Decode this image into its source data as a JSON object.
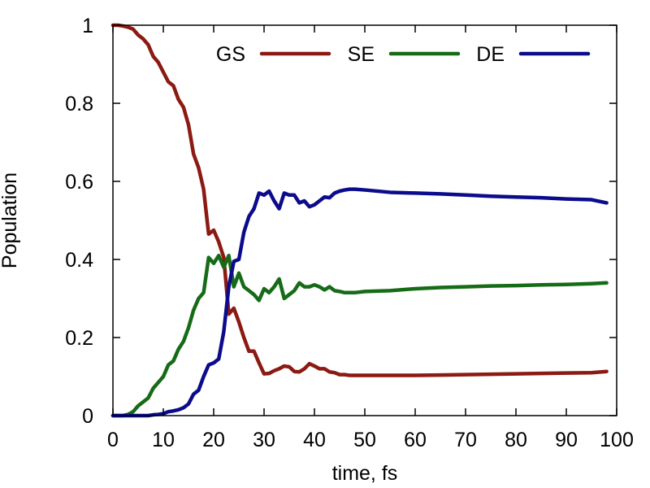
{
  "chart_data": {
    "type": "line",
    "xlabel": "time, fs",
    "ylabel": "Population",
    "xlim": [
      0,
      100
    ],
    "ylim": [
      0,
      1
    ],
    "xticks": [
      0,
      10,
      20,
      30,
      40,
      50,
      60,
      70,
      80,
      90,
      100
    ],
    "yticks": [
      0,
      0.2,
      0.4,
      0.6,
      0.8,
      1
    ],
    "ytick_labels": [
      "0",
      "0.2",
      "0.4",
      "0.6",
      "0.8",
      "1"
    ],
    "grid": false,
    "legend": "top",
    "series": [
      {
        "name": "GS",
        "color": "#8b1a12",
        "x": [
          0,
          1,
          2,
          3,
          4,
          5,
          6,
          7,
          8,
          9,
          10,
          11,
          12,
          13,
          14,
          15,
          16,
          17,
          18,
          19,
          20,
          21,
          22,
          23,
          24,
          25,
          26,
          27,
          28,
          29,
          30,
          31,
          32,
          33,
          34,
          35,
          36,
          37,
          38,
          39,
          40,
          41,
          42,
          43,
          44,
          45,
          46,
          47,
          48,
          50,
          55,
          60,
          65,
          70,
          75,
          80,
          85,
          90,
          95,
          98
        ],
        "y": [
          1.0,
          1.0,
          0.998,
          0.995,
          0.99,
          0.975,
          0.965,
          0.95,
          0.92,
          0.905,
          0.88,
          0.855,
          0.845,
          0.81,
          0.79,
          0.745,
          0.67,
          0.635,
          0.58,
          0.465,
          0.475,
          0.445,
          0.405,
          0.26,
          0.275,
          0.24,
          0.2,
          0.165,
          0.165,
          0.135,
          0.107,
          0.108,
          0.115,
          0.12,
          0.127,
          0.125,
          0.113,
          0.112,
          0.12,
          0.133,
          0.127,
          0.12,
          0.12,
          0.112,
          0.11,
          0.105,
          0.105,
          0.103,
          0.103,
          0.103,
          0.103,
          0.103,
          0.104,
          0.105,
          0.106,
          0.107,
          0.108,
          0.109,
          0.11,
          0.113
        ]
      },
      {
        "name": "SE",
        "color": "#166b16",
        "x": [
          0,
          1,
          2,
          3,
          4,
          5,
          6,
          7,
          8,
          9,
          10,
          11,
          12,
          13,
          14,
          15,
          16,
          17,
          18,
          19,
          20,
          21,
          22,
          23,
          24,
          25,
          26,
          27,
          28,
          29,
          30,
          31,
          32,
          33,
          34,
          35,
          36,
          37,
          38,
          39,
          40,
          41,
          42,
          43,
          44,
          45,
          46,
          47,
          48,
          50,
          55,
          60,
          65,
          70,
          75,
          80,
          85,
          90,
          95,
          98
        ],
        "y": [
          0.0,
          0.0,
          0.0,
          0.003,
          0.01,
          0.025,
          0.035,
          0.045,
          0.07,
          0.085,
          0.1,
          0.13,
          0.14,
          0.17,
          0.19,
          0.225,
          0.27,
          0.3,
          0.315,
          0.405,
          0.39,
          0.41,
          0.38,
          0.41,
          0.33,
          0.365,
          0.33,
          0.32,
          0.31,
          0.295,
          0.325,
          0.315,
          0.33,
          0.35,
          0.3,
          0.31,
          0.32,
          0.34,
          0.33,
          0.33,
          0.335,
          0.33,
          0.322,
          0.33,
          0.32,
          0.318,
          0.315,
          0.315,
          0.315,
          0.318,
          0.32,
          0.325,
          0.328,
          0.33,
          0.332,
          0.333,
          0.335,
          0.336,
          0.338,
          0.34
        ]
      },
      {
        "name": "DE",
        "color": "#0b0b8c",
        "x": [
          0,
          1,
          2,
          3,
          4,
          5,
          6,
          7,
          8,
          9,
          10,
          11,
          12,
          13,
          14,
          15,
          16,
          17,
          18,
          19,
          20,
          21,
          22,
          23,
          24,
          25,
          26,
          27,
          28,
          29,
          30,
          31,
          32,
          33,
          34,
          35,
          36,
          37,
          38,
          39,
          40,
          41,
          42,
          43,
          44,
          45,
          46,
          47,
          48,
          50,
          55,
          60,
          65,
          70,
          75,
          80,
          85,
          90,
          95,
          98
        ],
        "y": [
          0.0,
          0.0,
          0.0,
          0.0,
          0.0,
          0.0,
          0.0,
          0.0,
          0.002,
          0.003,
          0.005,
          0.01,
          0.012,
          0.015,
          0.02,
          0.03,
          0.055,
          0.065,
          0.1,
          0.13,
          0.135,
          0.145,
          0.215,
          0.33,
          0.395,
          0.4,
          0.47,
          0.51,
          0.53,
          0.57,
          0.565,
          0.575,
          0.55,
          0.53,
          0.57,
          0.565,
          0.565,
          0.545,
          0.55,
          0.535,
          0.54,
          0.55,
          0.56,
          0.558,
          0.57,
          0.575,
          0.578,
          0.58,
          0.58,
          0.578,
          0.572,
          0.57,
          0.568,
          0.565,
          0.562,
          0.56,
          0.558,
          0.555,
          0.553,
          0.545
        ]
      }
    ]
  }
}
